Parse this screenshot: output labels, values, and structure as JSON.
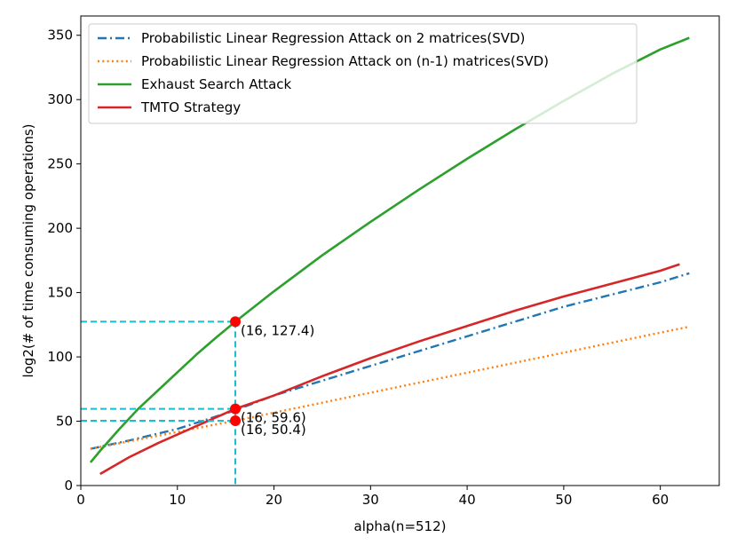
{
  "chart_data": {
    "type": "line",
    "xlabel": "alpha(n=512)",
    "ylabel": "log2(# of time consuming operations)",
    "xlim": [
      0,
      66.1
    ],
    "ylim": [
      0,
      365
    ],
    "xticks": [
      0,
      10,
      20,
      30,
      40,
      50,
      60
    ],
    "yticks": [
      0,
      50,
      100,
      150,
      200,
      250,
      300,
      350
    ],
    "legend": "top-left",
    "grid": false,
    "series": [
      {
        "name": "Probabilistic Linear Regression Attack on 2 matrices(SVD)",
        "color": "#1f77b4",
        "dash": "dashdot",
        "x": [
          1,
          5,
          10,
          16,
          20,
          30,
          40,
          50,
          60,
          63
        ],
        "y": [
          28.5,
          35,
          44,
          58.5,
          70,
          93,
          116,
          139,
          158,
          165
        ]
      },
      {
        "name": "Probabilistic Linear Regression Attack on (n-1) matrices(SVD)",
        "color": "#ff7f0e",
        "dash": "dotted",
        "x": [
          1,
          16,
          63
        ],
        "y": [
          28.5,
          50.4,
          123.5
        ]
      },
      {
        "name": "Exhaust Search Attack",
        "color": "#2ca02c",
        "dash": "solid",
        "x": [
          1,
          2,
          4,
          6,
          8,
          10,
          12,
          14,
          16,
          20,
          25,
          30,
          35,
          40,
          45,
          50,
          55,
          60,
          63
        ],
        "y": [
          18,
          27,
          44,
          60,
          74,
          88,
          102,
          115,
          127.4,
          151,
          179,
          205,
          230,
          254,
          277,
          299,
          320,
          339,
          348
        ]
      },
      {
        "name": "TMTO Strategy",
        "color": "#d62728",
        "dash": "solid",
        "x": [
          2,
          5,
          8,
          11,
          14,
          16,
          20,
          25,
          30,
          35,
          40,
          45,
          50,
          55,
          60,
          62
        ],
        "y": [
          9,
          22,
          33,
          43,
          53,
          59.6,
          70,
          85,
          99,
          112,
          124,
          136,
          147,
          157,
          167,
          172
        ]
      }
    ],
    "annotations": [
      {
        "x": 16,
        "y": 127.4,
        "label": "(16, 127.4)"
      },
      {
        "x": 16,
        "y": 59.6,
        "label": "(16, 59.6)"
      },
      {
        "x": 16,
        "y": 50.4,
        "label": "(16, 50.4)"
      }
    ],
    "guide_color": "#17becf",
    "marker_color": "#ff0000"
  }
}
